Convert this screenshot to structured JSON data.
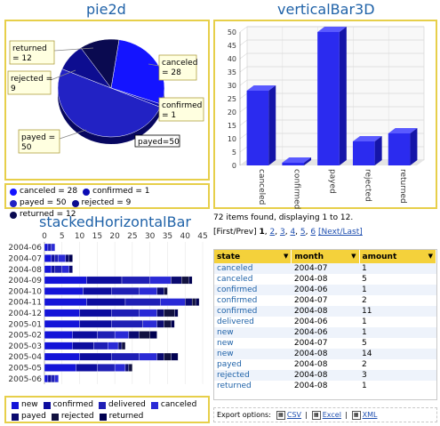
{
  "chart_data": [
    {
      "type": "pie",
      "title": "pie2d",
      "slices": [
        {
          "label": "canceled",
          "value": 28,
          "color": "#1414ff"
        },
        {
          "label": "confirmed",
          "value": 1,
          "color": "#0b0bb5"
        },
        {
          "label": "payed",
          "value": 50,
          "color": "#2222c4"
        },
        {
          "label": "rejected",
          "value": 9,
          "color": "#0d0d90"
        },
        {
          "label": "returned",
          "value": 12,
          "color": "#0a0a50"
        }
      ],
      "callouts": [
        "canceled\n= 28",
        "confirmed\n= 1",
        "payed =\n50",
        "rejected =\n9",
        "returned\n= 12",
        "payed=50"
      ],
      "legend": [
        "canceled = 28",
        "confirmed = 1",
        "payed = 50",
        "rejected = 9",
        "returned = 12"
      ],
      "legend_colors": [
        "#1414ff",
        "#0b0bb5",
        "#2222c4",
        "#0d0d90",
        "#0a0a50"
      ]
    },
    {
      "type": "bar",
      "title": "verticalBar3D",
      "categories": [
        "canceled",
        "confirmed",
        "payed",
        "rejected",
        "returned"
      ],
      "values": [
        28,
        1,
        50,
        9,
        12
      ],
      "ylim": [
        0,
        50
      ],
      "yticks": [
        "0",
        "5",
        "10",
        "15",
        "20",
        "25",
        "30",
        "35",
        "40",
        "45",
        "50"
      ],
      "grid": true
    },
    {
      "type": "bar",
      "orientation": "horizontal",
      "stacked": true,
      "title": "stackedHorizontalBar",
      "categories": [
        "2004-06",
        "2004-07",
        "2004-08",
        "2004-09",
        "2004-10",
        "2004-11",
        "2004-12",
        "2005-01",
        "2005-02",
        "2005-03",
        "2005-04",
        "2005-05",
        "2005-06"
      ],
      "xticks": [
        "0",
        "5",
        "10",
        "15",
        "20",
        "25",
        "30",
        "35",
        "40",
        "45"
      ],
      "xlim": [
        0,
        45
      ],
      "series": [
        {
          "name": "new",
          "color": "#1414d8",
          "values": [
            1,
            2,
            2,
            12,
            11,
            12,
            10,
            10,
            8,
            8,
            10,
            9,
            1
          ]
        },
        {
          "name": "confirmed",
          "color": "#0d0d9e",
          "values": [
            0,
            1,
            1,
            10,
            8,
            11,
            9,
            9,
            7,
            6,
            9,
            6,
            1
          ]
        },
        {
          "name": "delivered",
          "color": "#1f1fb5",
          "values": [
            1,
            1,
            2,
            8,
            8,
            10,
            8,
            9,
            5,
            4,
            8,
            5,
            1
          ]
        },
        {
          "name": "canceled",
          "color": "#2a2ad6",
          "values": [
            1,
            2,
            2,
            6,
            5,
            7,
            5,
            4,
            4,
            3,
            5,
            3,
            1
          ]
        },
        {
          "name": "payed",
          "color": "#0a0a70",
          "values": [
            0,
            1,
            1,
            3,
            2,
            2,
            2,
            2,
            3,
            1,
            2,
            1,
            0
          ]
        },
        {
          "name": "rejected",
          "color": "#121240",
          "values": [
            0,
            0,
            0,
            2,
            1,
            1,
            3,
            2,
            3,
            1,
            2,
            1,
            0
          ]
        },
        {
          "name": "returned",
          "color": "#000050",
          "values": [
            0,
            1,
            0,
            1,
            0,
            1,
            1,
            1,
            2,
            0,
            2,
            0,
            0
          ]
        }
      ]
    },
    {
      "type": "table",
      "columns": [
        "state",
        "month",
        "amount"
      ],
      "rows": [
        [
          "canceled",
          "2004-07",
          "1"
        ],
        [
          "canceled",
          "2004-08",
          "5"
        ],
        [
          "confirmed",
          "2004-06",
          "1"
        ],
        [
          "confirmed",
          "2004-07",
          "2"
        ],
        [
          "confirmed",
          "2004-08",
          "11"
        ],
        [
          "delivered",
          "2004-06",
          "1"
        ],
        [
          "new",
          "2004-06",
          "1"
        ],
        [
          "new",
          "2004-07",
          "5"
        ],
        [
          "new",
          "2004-08",
          "14"
        ],
        [
          "payed",
          "2004-08",
          "2"
        ],
        [
          "rejected",
          "2004-08",
          "3"
        ],
        [
          "returned",
          "2004-08",
          "1"
        ]
      ]
    }
  ],
  "table_info": {
    "found_text": "72 items found, displaying 1 to 12.",
    "pager_prefix": "[First/Prev]",
    "pages": [
      "1",
      "2",
      "3",
      "4",
      "5",
      "6"
    ],
    "pager_suffix": "[Next/Last]",
    "export_label": "Export options:",
    "export_links": [
      "CSV",
      "Excel",
      "XML"
    ],
    "export_sep": "|"
  },
  "colors": {
    "title": "#1f62a8",
    "panel_border": "#e7cf4a",
    "header": "#f4d13b",
    "link": "#1f4fb0"
  }
}
